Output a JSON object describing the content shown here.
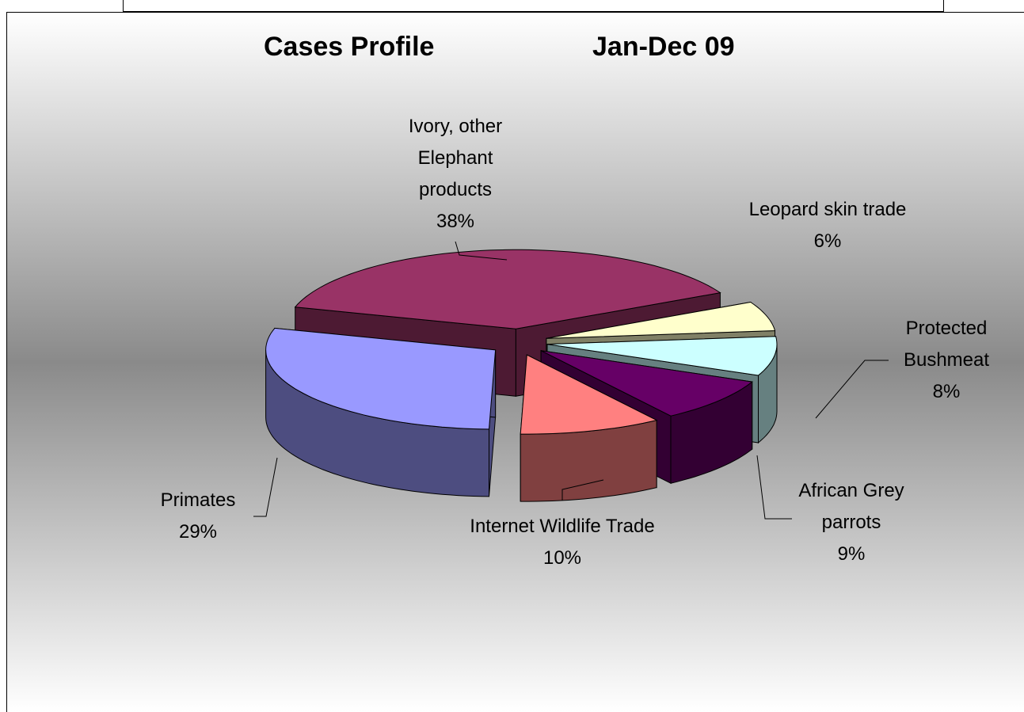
{
  "chart_data": {
    "type": "pie3d",
    "title": "Cases Profile",
    "subtitle": "Jan-Dec 09",
    "categories": [
      "Ivory, other Elephant products",
      "Leopard skin trade",
      "Protected Bushmeat",
      "African Grey parrots",
      "Internet Wildlife Trade",
      "Primates"
    ],
    "values": [
      38,
      6,
      8,
      9,
      10,
      29
    ],
    "value_labels": [
      "38%",
      "6%",
      "8%",
      "9%",
      "10%",
      "29%"
    ],
    "colors": [
      "#993366",
      "#ffffcc",
      "#ccffff",
      "#660066",
      "#ff8080",
      "#9999ff"
    ]
  }
}
